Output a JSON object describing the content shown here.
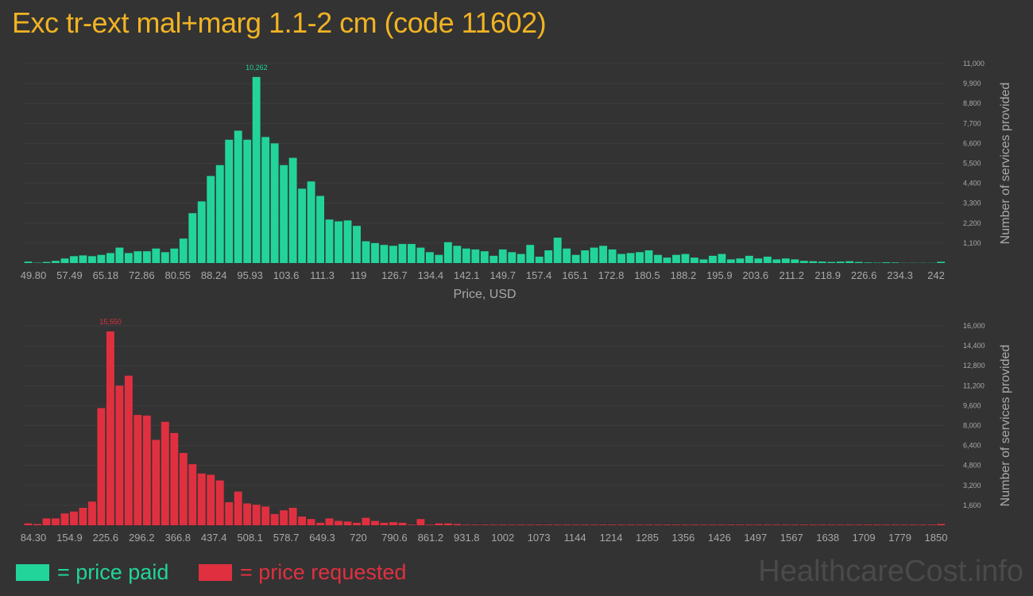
{
  "title": "Exc tr-ext mal+marg 1.1-2 cm (code 11602)",
  "colors": {
    "paid": "#22d49a",
    "requested": "#e03040",
    "title": "#f0b323",
    "grid": "#3d3d3d"
  },
  "legend": {
    "paid": "= price paid",
    "requested": "= price requested"
  },
  "watermark": "HealthcareCost.info",
  "chart_data": [
    {
      "type": "bar",
      "name": "paid",
      "xlabel": "Price, USD",
      "ylabel": "Number of services provided",
      "ylim": [
        0,
        11000
      ],
      "yticks": [
        "1,100",
        "2,200",
        "3,300",
        "4,400",
        "5,500",
        "6,600",
        "7,700",
        "8,800",
        "9,900",
        "11,000"
      ],
      "ytick_values": [
        1100,
        2200,
        3300,
        4400,
        5500,
        6600,
        7700,
        8800,
        9900,
        11000
      ],
      "xticks": [
        "49.80",
        "57.49",
        "65.18",
        "72.86",
        "80.55",
        "88.24",
        "95.93",
        "103.6",
        "111.3",
        "119",
        "126.7",
        "134.4",
        "142.1",
        "149.7",
        "157.4",
        "165.1",
        "172.8",
        "180.5",
        "188.2",
        "195.9",
        "203.6",
        "211.2",
        "218.9",
        "226.6",
        "234.3",
        "242"
      ],
      "x_range": [
        49.8,
        242
      ],
      "peak_label": "10,262",
      "values": [
        80,
        20,
        60,
        120,
        250,
        380,
        420,
        380,
        450,
        550,
        850,
        550,
        650,
        650,
        800,
        600,
        800,
        1350,
        2750,
        3400,
        4800,
        5400,
        6800,
        7300,
        6800,
        10262,
        6950,
        6600,
        5400,
        5800,
        4100,
        4500,
        3700,
        2400,
        2300,
        2350,
        2050,
        1200,
        1100,
        1000,
        950,
        1050,
        1050,
        850,
        600,
        450,
        1150,
        950,
        800,
        750,
        650,
        400,
        750,
        600,
        500,
        1000,
        350,
        700,
        1400,
        800,
        450,
        700,
        850,
        950,
        750,
        500,
        550,
        600,
        700,
        450,
        300,
        450,
        500,
        300,
        200,
        400,
        500,
        200,
        250,
        400,
        250,
        350,
        200,
        250,
        200,
        120,
        100,
        80,
        60,
        80,
        100,
        60,
        30,
        20,
        40,
        30,
        10,
        10,
        10,
        10,
        70
      ]
    },
    {
      "type": "bar",
      "name": "requested",
      "xlabel": "Price, USD",
      "ylabel": "Number of services provided",
      "ylim": [
        0,
        16000
      ],
      "yticks": [
        "1,600",
        "3,200",
        "4,800",
        "6,400",
        "8,000",
        "9,600",
        "11,200",
        "12,800",
        "14,400",
        "16,000"
      ],
      "ytick_values": [
        1600,
        3200,
        4800,
        6400,
        8000,
        9600,
        11200,
        12800,
        14400,
        16000
      ],
      "xticks": [
        "84.30",
        "154.9",
        "225.6",
        "296.2",
        "366.8",
        "437.4",
        "508.1",
        "578.7",
        "649.3",
        "720",
        "790.6",
        "861.2",
        "931.8",
        "1002",
        "1073",
        "1144",
        "1214",
        "1285",
        "1356",
        "1426",
        "1497",
        "1567",
        "1638",
        "1709",
        "1779",
        "1850"
      ],
      "x_range": [
        84.3,
        1850
      ],
      "peak_label": "15,550",
      "values": [
        150,
        100,
        550,
        550,
        950,
        1100,
        1400,
        1900,
        9400,
        15550,
        11200,
        12000,
        8850,
        8800,
        6850,
        8300,
        7400,
        5800,
        4900,
        4150,
        4050,
        3600,
        1850,
        2700,
        1750,
        1650,
        1500,
        900,
        1200,
        1400,
        700,
        500,
        200,
        550,
        350,
        300,
        200,
        600,
        350,
        200,
        250,
        200,
        50,
        500,
        50,
        150,
        150,
        100,
        50,
        50,
        50,
        50,
        50,
        50,
        50,
        50,
        50,
        50,
        50,
        50,
        50,
        50,
        50,
        50,
        50,
        50,
        50,
        50,
        50,
        50,
        50,
        50,
        50,
        50,
        50,
        50,
        50,
        50,
        50,
        50,
        50,
        50,
        50,
        50,
        50,
        50,
        50,
        50,
        50,
        50,
        50,
        50,
        50,
        50,
        50,
        50,
        50,
        50,
        50,
        50,
        100
      ]
    }
  ]
}
